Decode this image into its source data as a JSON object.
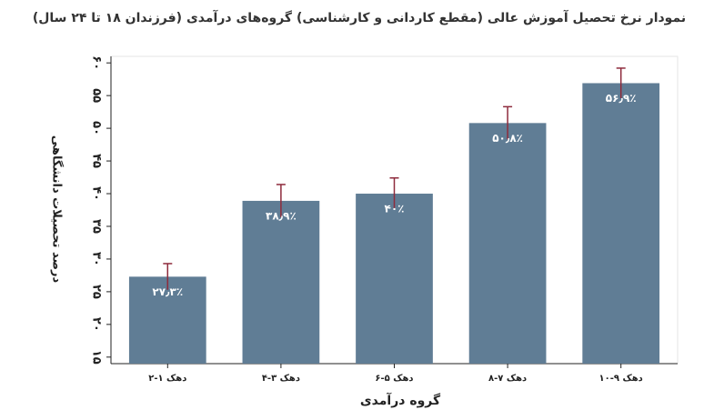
{
  "chart_data": {
    "type": "bar",
    "title": "نمودار نرخ تحصیل آموزش عالی (مقطع کاردانی و کارشناسی) گروه‌های درآمدی (فرزندان ۱۸ تا ۲۴ سال)",
    "y_label": "درصد تحصیلات دانشگاهی",
    "x_label": "گروه درآمدی",
    "categories": [
      "دهک ۱-۲",
      "دهک ۳-۴",
      "دهک ۵-۶",
      "دهک ۷-۸",
      "دهک ۹-۱۰"
    ],
    "values": [
      27.3,
      38.9,
      40,
      50.8,
      56.9
    ],
    "value_labels": [
      "۲۷٫۳٪",
      "۳۸٫۹٪",
      "۴۰٪",
      "۵۰٫۸٪",
      "۵۶٫۹٪"
    ],
    "errors": [
      2,
      2.5,
      2.4,
      2.5,
      2.3
    ],
    "color": "#607d95",
    "error_color": "#8e2b3c",
    "ylim": [
      14,
      61
    ],
    "yticks": [
      {
        "value": 15,
        "label": "۱۵"
      },
      {
        "value": 20,
        "label": "۲۰"
      },
      {
        "value": 25,
        "label": "۲۵"
      },
      {
        "value": 30,
        "label": "۳۰"
      },
      {
        "value": 35,
        "label": "۳۵"
      },
      {
        "value": 40,
        "label": "۴۰"
      },
      {
        "value": 45,
        "label": "۴۵"
      },
      {
        "value": 50,
        "label": "۵۰"
      },
      {
        "value": 55,
        "label": "۵۵"
      },
      {
        "value": 60,
        "label": "۶۰"
      }
    ]
  }
}
